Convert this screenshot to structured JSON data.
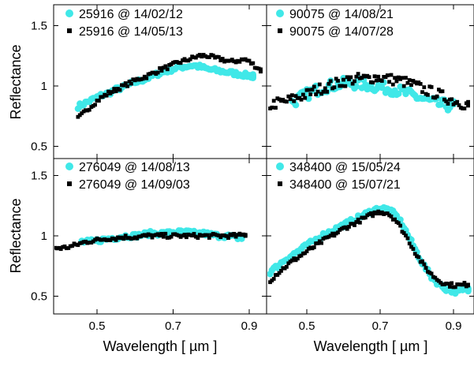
{
  "colors": {
    "cyan": "#40e8e8",
    "black": "#000000"
  },
  "shared": {
    "xlabel": "Wavelength [ µm ]",
    "ylabel": "Reflectance",
    "xlim": [
      0.39,
      0.95
    ],
    "ylim": [
      0.4,
      1.6
    ],
    "xticks": [
      0.5,
      0.7,
      0.9
    ],
    "yticks": [
      0.5,
      1,
      1.5
    ]
  },
  "chart_data": [
    {
      "type": "scatter",
      "panel": "top-left",
      "series": [
        {
          "name": "25916 @ 14/02/12",
          "color": "cyan",
          "marker": "circle",
          "x": [
            0.45,
            0.47,
            0.49,
            0.51,
            0.53,
            0.55,
            0.57,
            0.59,
            0.61,
            0.63,
            0.65,
            0.67,
            0.69,
            0.71,
            0.73,
            0.75,
            0.77,
            0.79,
            0.81,
            0.83,
            0.85,
            0.87,
            0.89,
            0.91
          ],
          "y": [
            0.83,
            0.86,
            0.89,
            0.92,
            0.94,
            0.97,
            0.99,
            1.02,
            1.04,
            1.06,
            1.09,
            1.11,
            1.13,
            1.15,
            1.16,
            1.17,
            1.16,
            1.14,
            1.13,
            1.12,
            1.11,
            1.1,
            1.09,
            1.08
          ]
        },
        {
          "name": "25916 @ 14/05/13",
          "color": "black",
          "marker": "square",
          "x": [
            0.45,
            0.47,
            0.49,
            0.51,
            0.53,
            0.55,
            0.57,
            0.59,
            0.61,
            0.63,
            0.65,
            0.67,
            0.69,
            0.71,
            0.73,
            0.75,
            0.77,
            0.79,
            0.81,
            0.83,
            0.85,
            0.87,
            0.89,
            0.91,
            0.93
          ],
          "y": [
            0.73,
            0.79,
            0.85,
            0.9,
            0.94,
            0.97,
            1.0,
            1.03,
            1.06,
            1.08,
            1.11,
            1.14,
            1.16,
            1.19,
            1.21,
            1.23,
            1.25,
            1.25,
            1.23,
            1.22,
            1.2,
            1.21,
            1.22,
            1.18,
            1.13
          ]
        }
      ]
    },
    {
      "type": "scatter",
      "panel": "top-right",
      "series": [
        {
          "name": "90075 @ 14/08/21",
          "color": "cyan",
          "marker": "circle",
          "x": [
            0.46,
            0.48,
            0.5,
            0.52,
            0.54,
            0.56,
            0.58,
            0.6,
            0.62,
            0.64,
            0.66,
            0.68,
            0.7,
            0.72,
            0.74,
            0.76,
            0.78,
            0.8,
            0.82,
            0.84,
            0.86,
            0.88,
            0.9
          ],
          "y": [
            0.86,
            0.9,
            0.93,
            0.96,
            0.98,
            1.0,
            1.01,
            1.02,
            1.02,
            1.02,
            1.01,
            1.0,
            0.99,
            0.98,
            0.97,
            0.95,
            0.93,
            0.91,
            0.89,
            0.87,
            0.85,
            0.84,
            0.83
          ]
        },
        {
          "name": "90075 @ 14/07/28",
          "color": "black",
          "marker": "square",
          "x": [
            0.4,
            0.42,
            0.44,
            0.46,
            0.48,
            0.5,
            0.52,
            0.54,
            0.56,
            0.58,
            0.6,
            0.62,
            0.64,
            0.66,
            0.68,
            0.7,
            0.72,
            0.74,
            0.76,
            0.78,
            0.8,
            0.82,
            0.84,
            0.86,
            0.88,
            0.9,
            0.92,
            0.94
          ],
          "y": [
            0.84,
            0.86,
            0.87,
            0.89,
            0.91,
            0.93,
            0.96,
            0.98,
            1.0,
            1.02,
            1.04,
            1.05,
            1.06,
            1.06,
            1.07,
            1.07,
            1.06,
            1.05,
            1.04,
            1.02,
            1.0,
            0.97,
            0.95,
            0.93,
            0.9,
            0.88,
            0.86,
            0.84
          ]
        }
      ]
    },
    {
      "type": "scatter",
      "panel": "bottom-left",
      "series": [
        {
          "name": "276049 @ 14/08/13",
          "color": "cyan",
          "marker": "circle",
          "x": [
            0.46,
            0.48,
            0.5,
            0.52,
            0.54,
            0.56,
            0.58,
            0.6,
            0.62,
            0.64,
            0.66,
            0.68,
            0.7,
            0.72,
            0.74,
            0.76,
            0.78,
            0.8,
            0.82,
            0.84,
            0.86,
            0.88
          ],
          "y": [
            0.95,
            0.95,
            0.96,
            0.97,
            0.98,
            0.99,
            1.0,
            1.0,
            1.01,
            1.02,
            1.02,
            1.02,
            1.03,
            1.03,
            1.03,
            1.02,
            1.02,
            1.01,
            1.0,
            1.0,
            0.99,
            0.98
          ]
        },
        {
          "name": "276049 @ 14/09/03",
          "color": "black",
          "marker": "square",
          "x": [
            0.39,
            0.41,
            0.43,
            0.45,
            0.47,
            0.49,
            0.51,
            0.53,
            0.55,
            0.57,
            0.59,
            0.61,
            0.63,
            0.65,
            0.67,
            0.69,
            0.71,
            0.73,
            0.75,
            0.77,
            0.79,
            0.81,
            0.83,
            0.85,
            0.87,
            0.89
          ],
          "y": [
            0.9,
            0.9,
            0.91,
            0.93,
            0.95,
            0.96,
            0.97,
            0.98,
            0.98,
            0.99,
            0.99,
            0.99,
            1.0,
            1.0,
            1.0,
            1.0,
            1.0,
            1.0,
            1.0,
            1.0,
            1.0,
            1.0,
            1.0,
            1.0,
            1.0,
            1.01
          ]
        }
      ]
    },
    {
      "type": "scatter",
      "panel": "bottom-right",
      "series": [
        {
          "name": "348400 @ 15/05/24",
          "color": "cyan",
          "marker": "circle",
          "x": [
            0.4,
            0.42,
            0.44,
            0.46,
            0.48,
            0.5,
            0.52,
            0.54,
            0.56,
            0.58,
            0.6,
            0.62,
            0.64,
            0.66,
            0.68,
            0.7,
            0.72,
            0.74,
            0.76,
            0.78,
            0.8,
            0.82,
            0.84,
            0.86,
            0.88,
            0.9,
            0.92,
            0.94
          ],
          "y": [
            0.7,
            0.75,
            0.8,
            0.84,
            0.88,
            0.92,
            0.96,
            1.0,
            1.03,
            1.06,
            1.09,
            1.12,
            1.15,
            1.18,
            1.21,
            1.23,
            1.22,
            1.18,
            1.1,
            0.98,
            0.86,
            0.75,
            0.66,
            0.6,
            0.56,
            0.54,
            0.54,
            0.56
          ]
        },
        {
          "name": "348400 @ 15/07/21",
          "color": "black",
          "marker": "square",
          "x": [
            0.4,
            0.42,
            0.44,
            0.46,
            0.48,
            0.5,
            0.52,
            0.54,
            0.56,
            0.58,
            0.6,
            0.62,
            0.64,
            0.66,
            0.68,
            0.7,
            0.72,
            0.74,
            0.76,
            0.78,
            0.8,
            0.82,
            0.84,
            0.86,
            0.88,
            0.9,
            0.92,
            0.94
          ],
          "y": [
            0.63,
            0.69,
            0.74,
            0.79,
            0.83,
            0.87,
            0.91,
            0.95,
            0.99,
            1.02,
            1.06,
            1.09,
            1.12,
            1.15,
            1.18,
            1.2,
            1.19,
            1.14,
            1.05,
            0.95,
            0.84,
            0.75,
            0.68,
            0.63,
            0.6,
            0.59,
            0.59,
            0.6
          ]
        }
      ]
    }
  ]
}
